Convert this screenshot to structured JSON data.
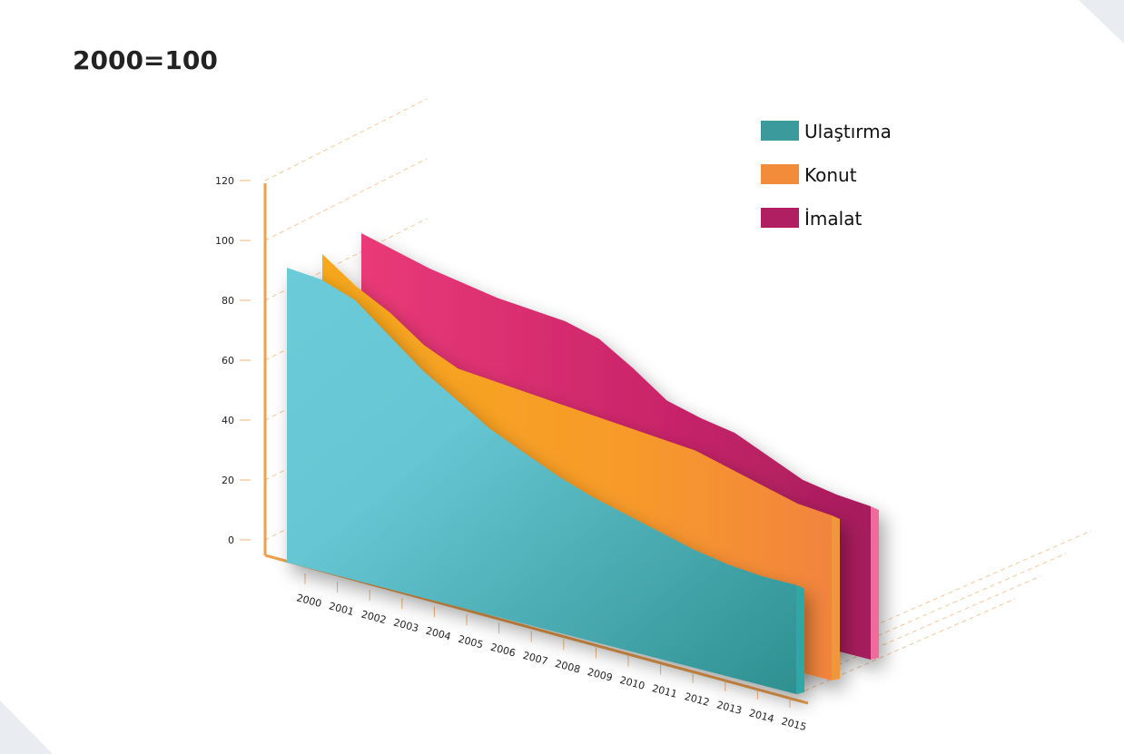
{
  "chart_data": {
    "type": "area",
    "title": "2000=100",
    "x": [
      "2000",
      "2001",
      "2002",
      "2003",
      "2004",
      "2005",
      "2006",
      "2007",
      "2008",
      "2009",
      "2010",
      "2011",
      "2012",
      "2013",
      "2014",
      "2015"
    ],
    "y_ticks": [
      0,
      20,
      40,
      60,
      80,
      100,
      120
    ],
    "ylim": [
      0,
      120
    ],
    "legend_position": "top-right",
    "series": [
      {
        "name": "Ulaştırma",
        "color": "#3a9a9c",
        "values": [
          100,
          99,
          95,
          86,
          77,
          70,
          63,
          58,
          53,
          49,
          46,
          43,
          40,
          38,
          37,
          37
        ]
      },
      {
        "name": "Konut",
        "color": "#f28c3a",
        "values": [
          100,
          92,
          86,
          78,
          73,
          72,
          71,
          70,
          69,
          68,
          67,
          66,
          63,
          60,
          57,
          56
        ]
      },
      {
        "name": "İmalat",
        "color": "#b01f61",
        "values": [
          100,
          97,
          94,
          92,
          90,
          89,
          88,
          85,
          78,
          70,
          67,
          65,
          60,
          55,
          53,
          52
        ]
      }
    ]
  }
}
